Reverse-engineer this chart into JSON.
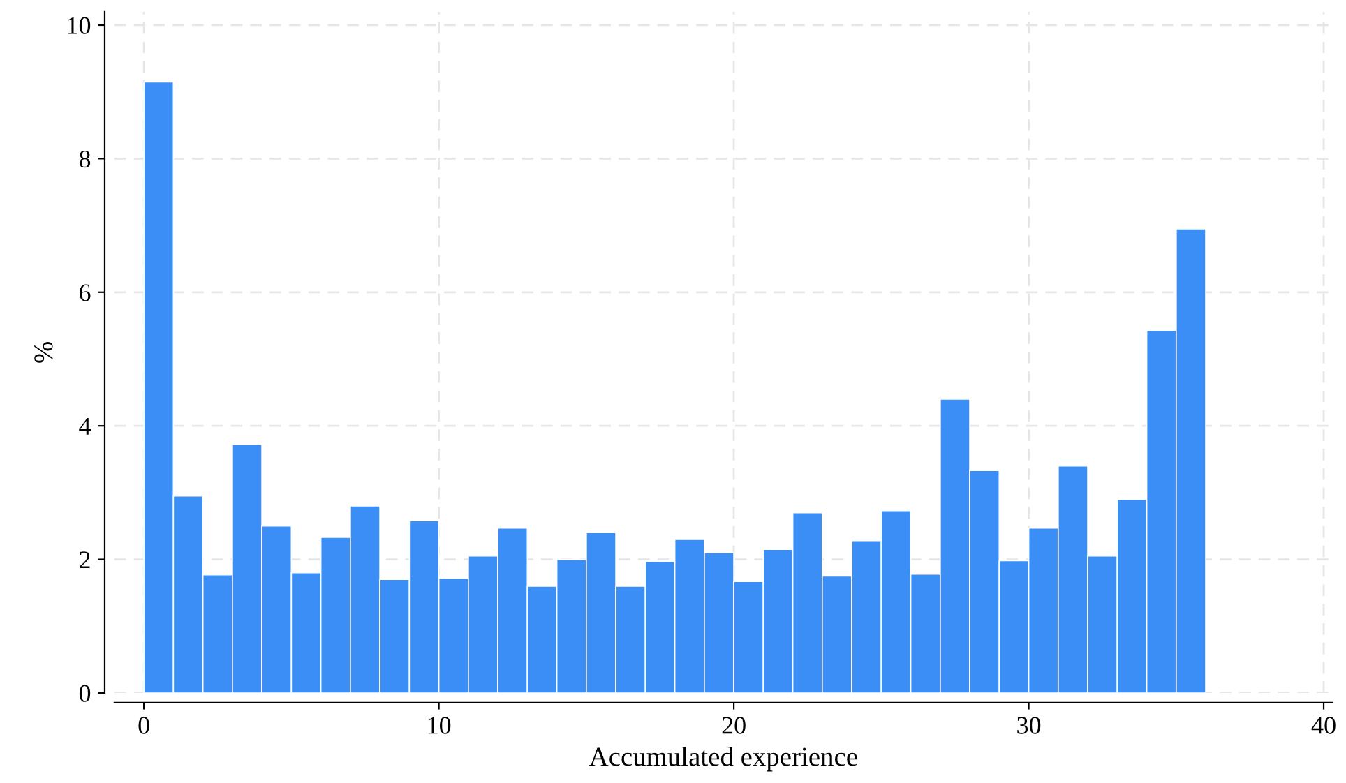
{
  "chart_data": {
    "type": "histogram",
    "xlabel": "Accumulated experience",
    "ylabel": "%",
    "bins": [
      0,
      1,
      2,
      3,
      4,
      5,
      6,
      7,
      8,
      9,
      10,
      11,
      12,
      13,
      14,
      15,
      16,
      17,
      18,
      19,
      20,
      21,
      22,
      23,
      24,
      25,
      26,
      27,
      28,
      29,
      30,
      31,
      32,
      33,
      34,
      35,
      36
    ],
    "values": [
      9.15,
      2.95,
      1.77,
      3.72,
      2.5,
      1.8,
      2.33,
      2.8,
      1.7,
      2.58,
      1.72,
      2.05,
      2.47,
      1.6,
      2.0,
      2.4,
      1.6,
      1.97,
      2.3,
      2.1,
      1.67,
      2.15,
      2.7,
      1.75,
      2.28,
      2.73,
      1.78,
      4.4,
      3.33,
      1.98,
      2.47,
      3.4,
      2.05,
      2.9,
      5.43,
      6.95
    ],
    "color": "#3a8ef6",
    "xlim": [
      -1,
      40.3
    ],
    "ylim": [
      0,
      10.2
    ],
    "xticks": [
      0,
      10,
      20,
      30,
      40
    ],
    "yticks": [
      0,
      2,
      4,
      6,
      8,
      10
    ],
    "grid": true
  }
}
